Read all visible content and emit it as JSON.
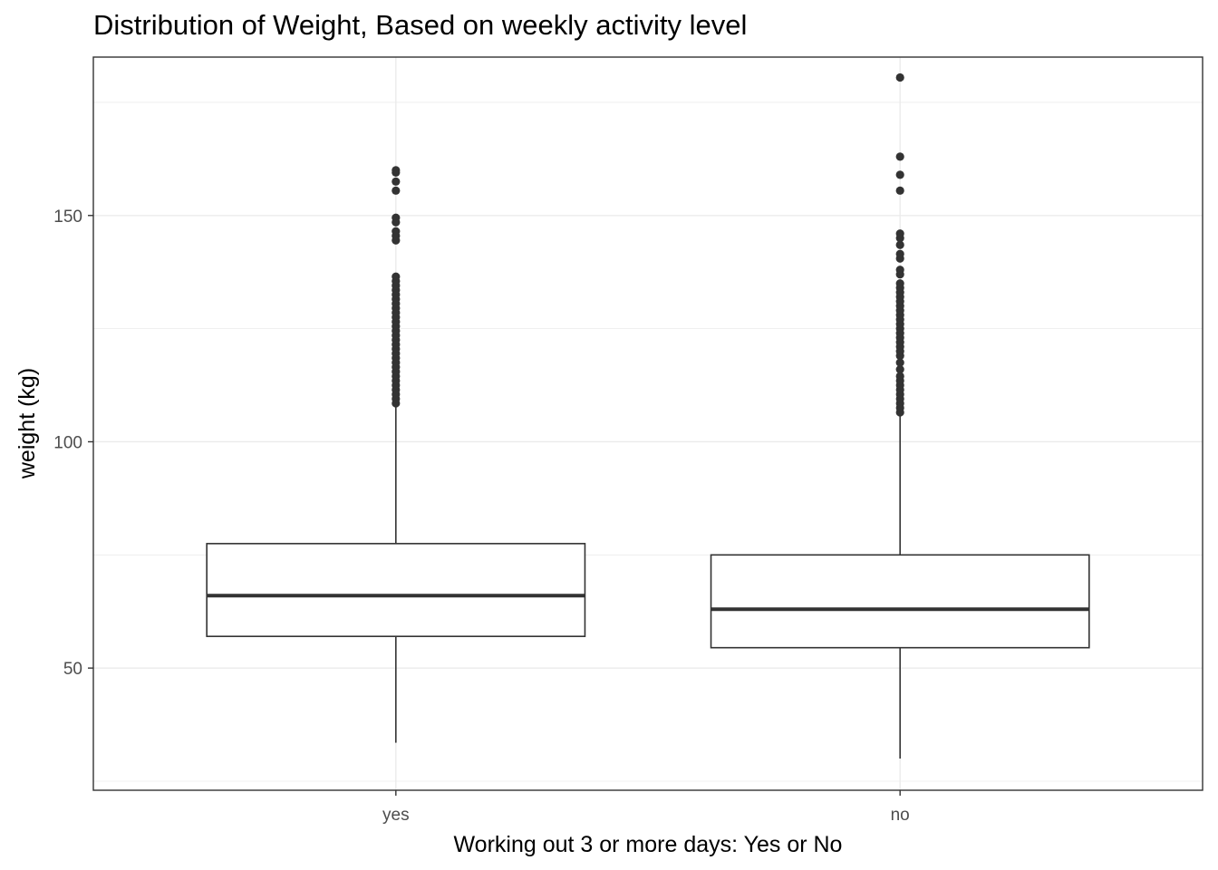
{
  "chart_data": {
    "type": "boxplot",
    "title": "Distribution of Weight, Based on weekly activity level",
    "xlabel": "Working out 3 or more days: Yes or No",
    "ylabel": "weight (kg)",
    "categories": [
      "yes",
      "no"
    ],
    "y_ticks": [
      50,
      100,
      150
    ],
    "ylim": [
      23,
      185
    ],
    "grid": true,
    "boxes": [
      {
        "category": "yes",
        "whisker_low": 33.5,
        "q1": 57,
        "median": 66,
        "q3": 77.5,
        "whisker_high": 108,
        "outliers": [
          108.5,
          109.5,
          110.5,
          111.5,
          112.5,
          113.5,
          114.5,
          115.5,
          116.5,
          117.5,
          118.5,
          119.5,
          120.5,
          121.5,
          122.5,
          123.5,
          124.5,
          125.5,
          126.5,
          127.5,
          128.5,
          129.5,
          130.5,
          131.5,
          132.5,
          133.5,
          134.5,
          135.5,
          136.5,
          144.5,
          145.5,
          146.5,
          148.5,
          149.5,
          155.5,
          157.5,
          159.5,
          160
        ]
      },
      {
        "category": "no",
        "whisker_low": 30,
        "q1": 54.5,
        "median": 63,
        "q3": 75,
        "whisker_high": 106,
        "outliers": [
          106.5,
          107.5,
          108.5,
          109.5,
          110.5,
          111.5,
          112.5,
          113.5,
          114.5,
          116,
          117.5,
          119,
          120,
          121,
          122,
          123,
          124,
          125,
          126,
          127,
          128,
          129,
          130,
          131,
          132,
          133,
          134,
          135,
          137,
          138,
          140.5,
          141.5,
          143.5,
          145,
          146,
          155.5,
          159,
          163,
          180.5
        ]
      }
    ]
  }
}
